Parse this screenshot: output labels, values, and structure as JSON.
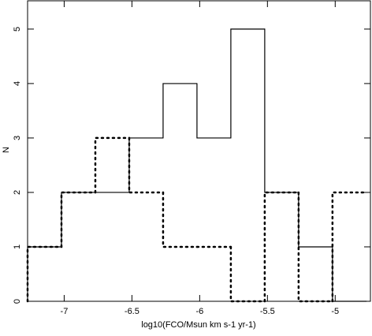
{
  "chart_data": {
    "type": "histogram",
    "xlabel": "log10(FCO/Msun km s-1 yr-1)",
    "ylabel": "N",
    "bins": [
      -7.27,
      -7.02,
      -6.77,
      -6.52,
      -6.27,
      -6.02,
      -5.77,
      -5.52,
      -5.27,
      -5.02,
      -4.77
    ],
    "series": [
      {
        "color": "#000000",
        "dash": "solid",
        "values": [
          1,
          2,
          2,
          3,
          4,
          3,
          5,
          2,
          1,
          0
        ]
      },
      {
        "color": "#000000",
        "dash": "dotted",
        "values": [
          1,
          2,
          3,
          2,
          1,
          1,
          0,
          2,
          0,
          2
        ]
      }
    ],
    "xlim": [
      -7.27,
      -4.74
    ],
    "ylim": [
      0,
      5.52
    ],
    "xticks": [
      -7,
      -6.5,
      -6,
      -5.5,
      -5
    ],
    "yticks": [
      0,
      1,
      2,
      3,
      4,
      5
    ]
  }
}
